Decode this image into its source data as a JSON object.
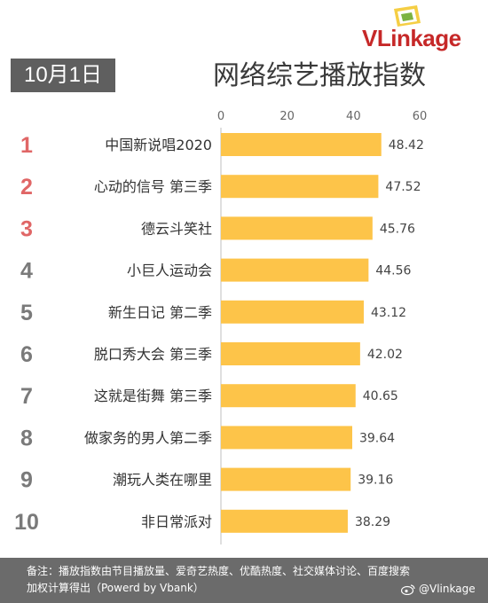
{
  "logo": {
    "text": "VLinkage"
  },
  "date_label": "10月1日",
  "chart_data": {
    "type": "bar",
    "orientation": "horizontal",
    "title": "网络综艺播放指数",
    "ranks": [
      "1",
      "2",
      "3",
      "4",
      "5",
      "6",
      "7",
      "8",
      "9",
      "10"
    ],
    "categories": [
      "中国新说唱2020",
      "心动的信号 第三季",
      "德云斗笑社",
      "小巨人运动会",
      "新生日记 第二季",
      "脱口秀大会 第三季",
      "这就是街舞 第三季",
      "做家务的男人第二季",
      "潮玩人类在哪里",
      "非日常派对"
    ],
    "values": [
      48.42,
      47.52,
      45.76,
      44.56,
      43.12,
      42.02,
      40.65,
      39.64,
      39.16,
      38.29
    ],
    "value_labels": [
      "48.42",
      "47.52",
      "45.76",
      "44.56",
      "43.12",
      "42.02",
      "40.65",
      "39.64",
      "39.16",
      "38.29"
    ],
    "xlim": [
      0,
      60
    ],
    "xticks": [
      "0",
      "20",
      "40",
      "60"
    ],
    "bar_color": "#fdc449",
    "top_rank_color": "#e06666",
    "rank_color": "#7a7a7a",
    "grid": false
  },
  "footer": {
    "note": "备注：播放指数由节目播放量、爱奇艺热度、优酷热度、社交媒体讨论、百度搜索加权计算得出（Powerd by Vbank）",
    "watermark": "@Vlinkage"
  }
}
